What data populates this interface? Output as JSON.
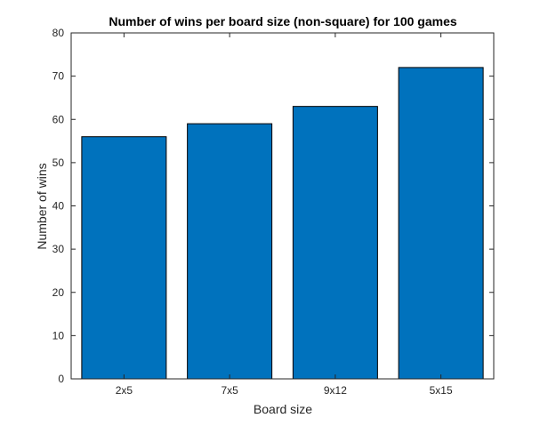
{
  "chart_data": {
    "type": "bar",
    "title": "Number of wins per board size (non-square) for 100 games",
    "xlabel": "Board size",
    "ylabel": "Number of wins",
    "categories": [
      "2x5",
      "7x5",
      "9x12",
      "5x15"
    ],
    "values": [
      56,
      59,
      63,
      72
    ],
    "ylim": [
      0,
      80
    ],
    "yticks": [
      0,
      10,
      20,
      30,
      40,
      50,
      60,
      70,
      80
    ],
    "grid": false,
    "legend": "none",
    "bar_color": "#0072BD",
    "bar_edge_color": "#000000"
  }
}
